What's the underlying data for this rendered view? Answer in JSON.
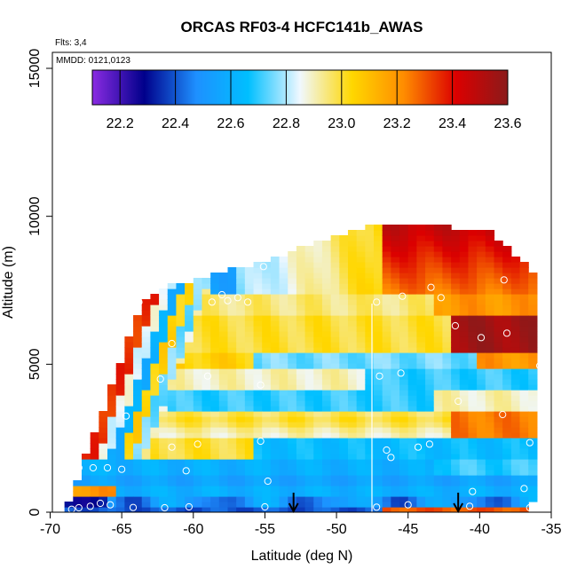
{
  "chart_data": {
    "type": "heatmap",
    "title": "ORCAS RF03-4 HCFC141b_AWAS",
    "notes": [
      "Flts: 3,4",
      "MMDD: 0121,0123"
    ],
    "xlabel": "Latitude (deg N)",
    "ylabel": "Altitude (m)",
    "xlim": [
      -70,
      -35
    ],
    "ylim": [
      0,
      15000
    ],
    "xticks": [
      "-70",
      "-65",
      "-60",
      "-55",
      "-50",
      "-45",
      "-40",
      "-35"
    ],
    "yticks": [
      "0",
      "5000",
      "10000",
      "15000"
    ],
    "colorbar": {
      "range": [
        22.1,
        23.6
      ],
      "tick_labels": [
        "22.2",
        "22.4",
        "22.6",
        "22.8",
        "23.0",
        "23.2",
        "23.4",
        "23.6"
      ],
      "colors": [
        "#8a2be2",
        "#00008b",
        "#1e90ff",
        "#00bfff",
        "#f0f8ff",
        "#ffd700",
        "#ff8c00",
        "#dc0000",
        "#8b1a1a"
      ]
    },
    "arrows_x": [
      -53,
      -41.5
    ],
    "sample_points": [
      {
        "x": -68.5,
        "y": 100
      },
      {
        "x": -68,
        "y": 150
      },
      {
        "x": -67.2,
        "y": 200
      },
      {
        "x": -66.5,
        "y": 300
      },
      {
        "x": -65.8,
        "y": 250
      },
      {
        "x": -64.2,
        "y": 160
      },
      {
        "x": -62,
        "y": 150
      },
      {
        "x": -60.3,
        "y": 180
      },
      {
        "x": -55,
        "y": 180
      },
      {
        "x": -47.2,
        "y": 170
      },
      {
        "x": -45,
        "y": 250
      },
      {
        "x": -40.7,
        "y": 200
      },
      {
        "x": -36.5,
        "y": 150
      },
      {
        "x": -68,
        "y": 1500
      },
      {
        "x": -67,
        "y": 1500
      },
      {
        "x": -66,
        "y": 1500
      },
      {
        "x": -65,
        "y": 1450
      },
      {
        "x": -60.5,
        "y": 1400
      },
      {
        "x": -54.8,
        "y": 1050
      },
      {
        "x": -40.5,
        "y": 700
      },
      {
        "x": -36.9,
        "y": 800
      },
      {
        "x": -61.5,
        "y": 2200
      },
      {
        "x": -59.7,
        "y": 2300
      },
      {
        "x": -55.3,
        "y": 2400
      },
      {
        "x": -46.5,
        "y": 2100
      },
      {
        "x": -46.2,
        "y": 1850
      },
      {
        "x": -44.3,
        "y": 2200
      },
      {
        "x": -43.5,
        "y": 2300
      },
      {
        "x": -36.5,
        "y": 2350
      },
      {
        "x": -64.7,
        "y": 3250
      },
      {
        "x": -38.4,
        "y": 3300
      },
      {
        "x": -62.3,
        "y": 4500
      },
      {
        "x": -59,
        "y": 4600
      },
      {
        "x": -55.3,
        "y": 4300
      },
      {
        "x": -47,
        "y": 4600
      },
      {
        "x": -45.5,
        "y": 4700
      },
      {
        "x": -41.5,
        "y": 3750
      },
      {
        "x": -35.8,
        "y": 4950
      },
      {
        "x": -61.5,
        "y": 5700
      },
      {
        "x": -39.9,
        "y": 5900
      },
      {
        "x": -38.1,
        "y": 6050
      },
      {
        "x": -41.7,
        "y": 6300
      },
      {
        "x": -63.8,
        "y": 7100
      },
      {
        "x": -58.7,
        "y": 7100
      },
      {
        "x": -58,
        "y": 7350
      },
      {
        "x": -57.6,
        "y": 7150
      },
      {
        "x": -56.9,
        "y": 7250
      },
      {
        "x": -56.2,
        "y": 7100
      },
      {
        "x": -55.1,
        "y": 8300
      },
      {
        "x": -47.2,
        "y": 7100
      },
      {
        "x": -45.4,
        "y": 7300
      },
      {
        "x": -43.4,
        "y": 7600
      },
      {
        "x": -42.7,
        "y": 7250
      },
      {
        "x": -38.3,
        "y": 7850
      }
    ]
  }
}
